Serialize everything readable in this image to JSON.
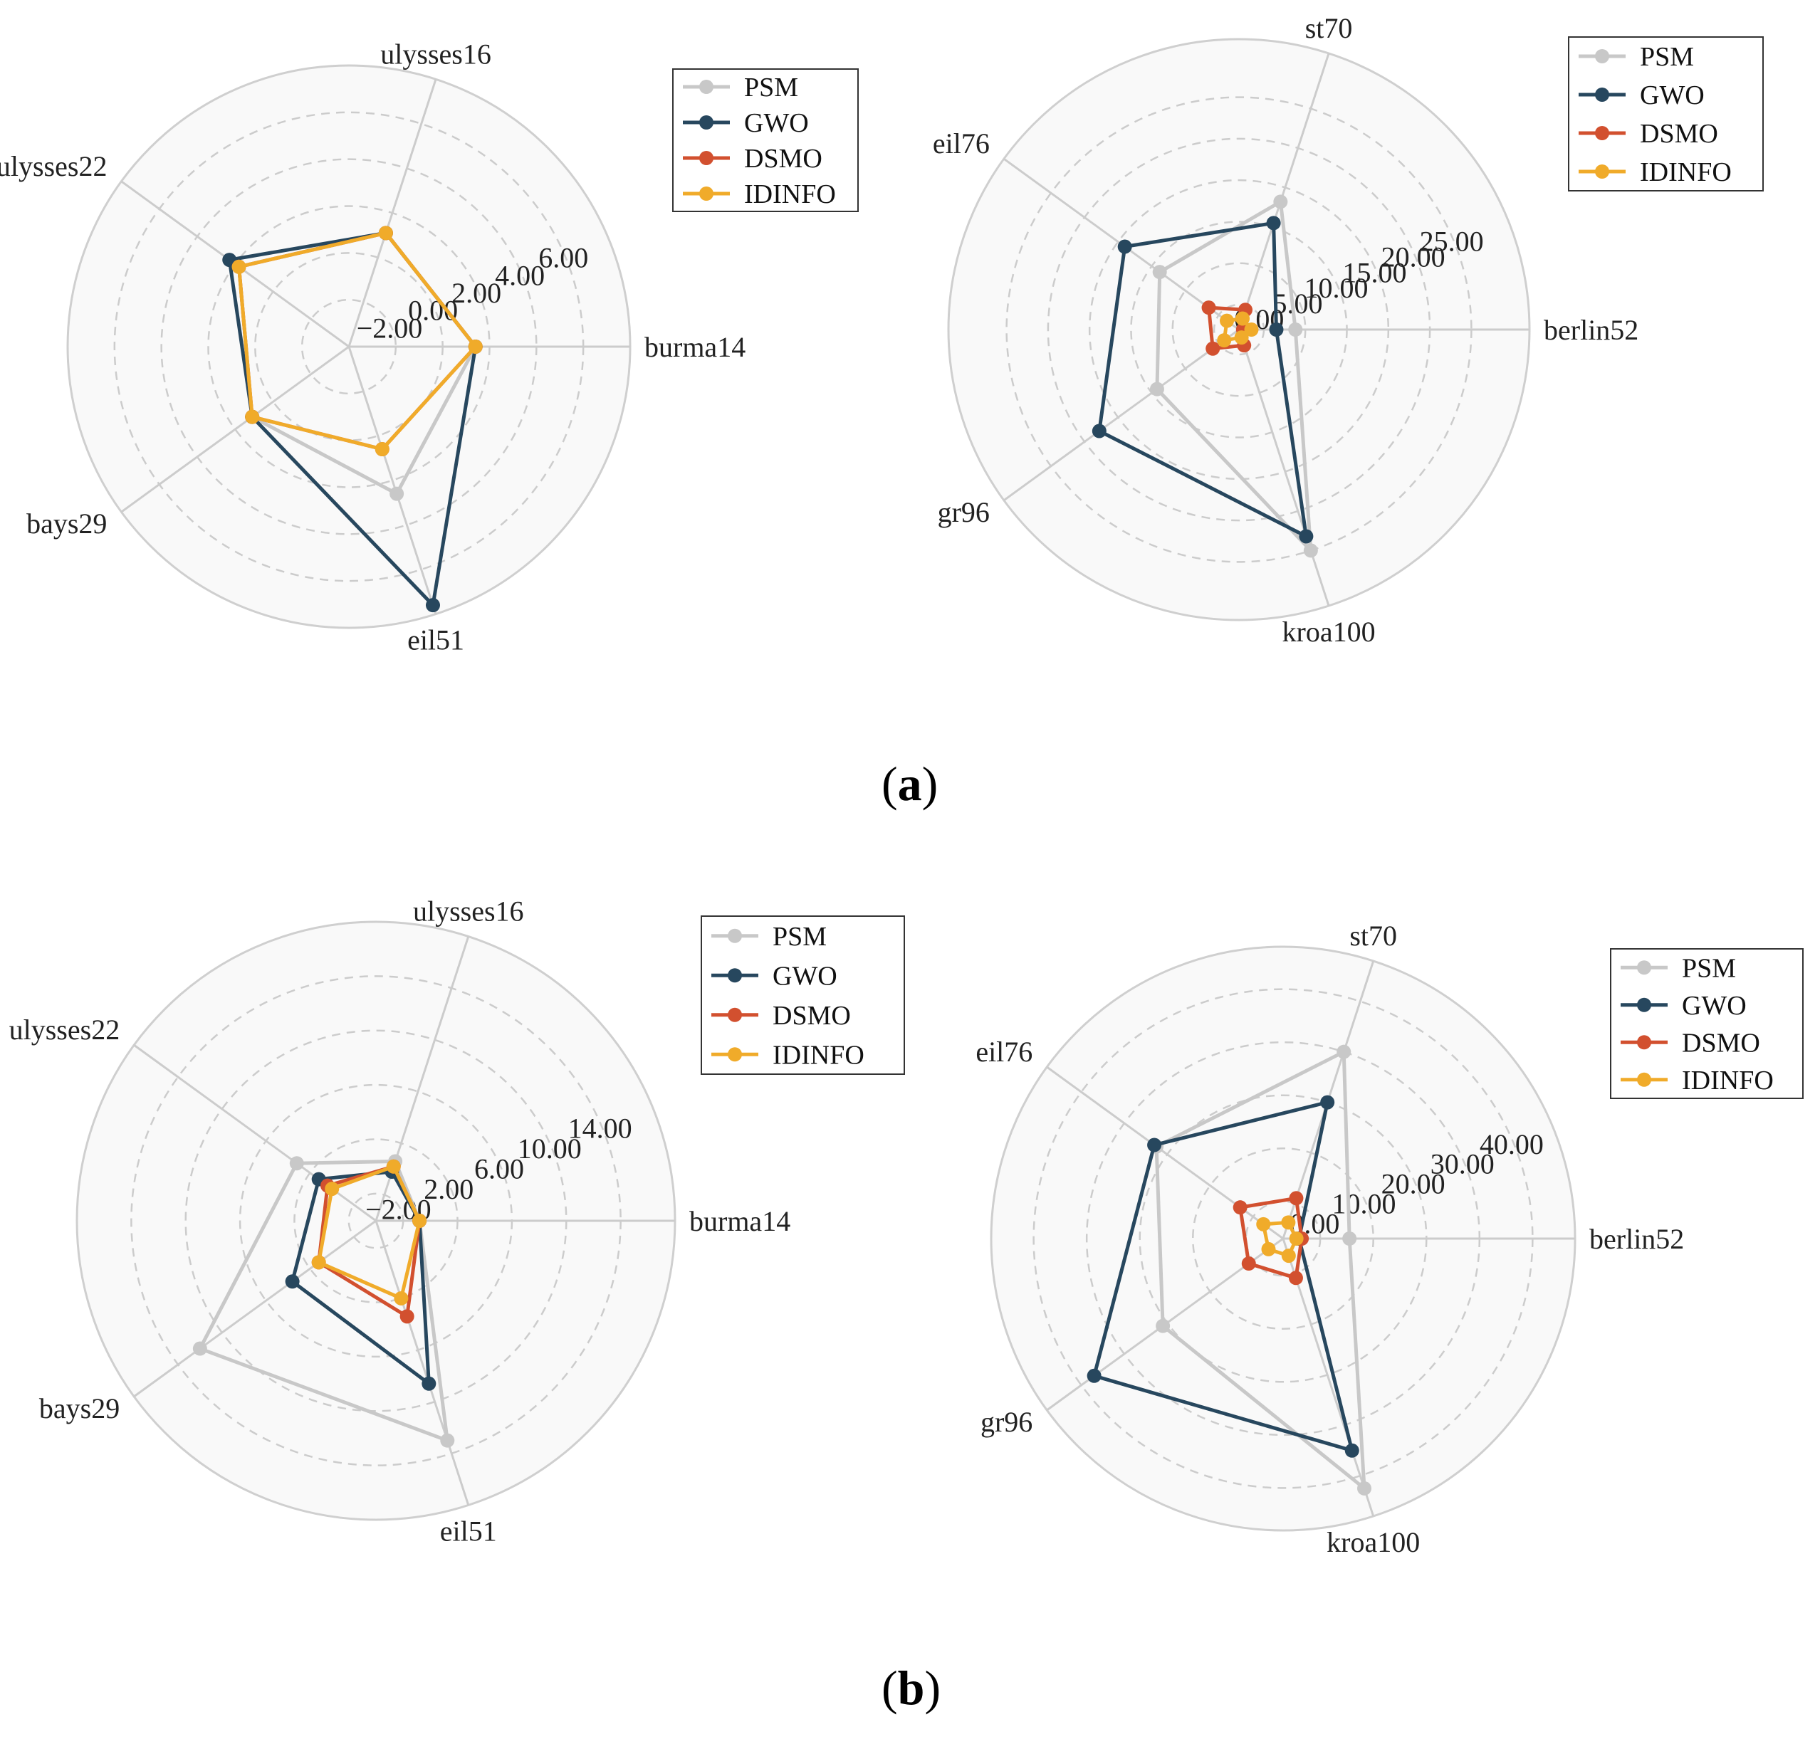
{
  "figure": {
    "panel_labels": [
      {
        "open": "(",
        "letter": "a",
        "close": ")"
      },
      {
        "open": "(",
        "letter": "b",
        "close": ")"
      }
    ]
  },
  "series_styles": [
    {
      "name": "PSM",
      "color": "#c8c8c8"
    },
    {
      "name": "GWO",
      "color": "#27475e"
    },
    {
      "name": "DSMO",
      "color": "#d2502f"
    },
    {
      "name": "IDINFO",
      "color": "#f0ab2a"
    }
  ],
  "chart_data": [
    {
      "type": "radar",
      "panel": "a-left",
      "axes": [
        "burma14",
        "ulysses16",
        "ulysses22",
        "bays29",
        "eil51"
      ],
      "rlim": [
        -4,
        8
      ],
      "ticks": [
        -2,
        0,
        2,
        4,
        6
      ],
      "tick_labels": [
        "−2.00",
        "0.00",
        "2.00",
        "4.00",
        "6.00"
      ],
      "grid": true,
      "legend": "top-right",
      "series": [
        {
          "name": "PSM",
          "values": [
            1.4,
            1.1,
            1.8,
            1.1,
            2.6
          ]
        },
        {
          "name": "GWO",
          "values": [
            1.4,
            1.1,
            2.3,
            1.1,
            7.6
          ]
        },
        {
          "name": "DSMO",
          "values": [
            1.4,
            1.1,
            1.8,
            1.1,
            0.6
          ]
        },
        {
          "name": "IDINFO",
          "values": [
            1.4,
            1.1,
            1.8,
            1.1,
            0.6
          ]
        }
      ]
    },
    {
      "type": "radar",
      "panel": "a-right",
      "axes": [
        "berlin52",
        "st70",
        "eil76",
        "gr96",
        "kroa100"
      ],
      "rlim": [
        -3,
        32
      ],
      "ticks": [
        0,
        5,
        10,
        15,
        20,
        25
      ],
      "tick_labels": [
        "0.00",
        "5.00",
        "10.00",
        "15.00",
        "20.00",
        "25.00"
      ],
      "grid": true,
      "legend": "top-right",
      "series": [
        {
          "name": "PSM",
          "values": [
            3.8,
            13.2,
            8.8,
            9.2,
            25.0
          ]
        },
        {
          "name": "GWO",
          "values": [
            1.5,
            10.5,
            14.0,
            17.8,
            23.2
          ]
        },
        {
          "name": "DSMO",
          "values": [
            -2.5,
            -0.5,
            1.5,
            0.9,
            -1.0
          ]
        },
        {
          "name": "IDINFO",
          "values": [
            -1.5,
            -1.6,
            -1.2,
            -0.8,
            -2.0
          ]
        }
      ]
    },
    {
      "type": "radar",
      "panel": "b-left",
      "axes": [
        "burma14",
        "ulysses16",
        "ulysses22",
        "bays29",
        "eil51"
      ],
      "rlim": [
        -4,
        18
      ],
      "ticks": [
        -2,
        2,
        6,
        10,
        14
      ],
      "tick_labels": [
        "−2.00",
        "2.00",
        "6.00",
        "10.00",
        "14.00"
      ],
      "grid": true,
      "legend": "top-right",
      "series": [
        {
          "name": "PSM",
          "values": [
            -0.8,
            0.6,
            3.2,
            12.0,
            13.0
          ]
        },
        {
          "name": "GWO",
          "values": [
            -0.8,
            -0.2,
            1.2,
            3.6,
            8.6
          ]
        },
        {
          "name": "DSMO",
          "values": [
            -0.8,
            0.2,
            0.4,
            1.2,
            3.4
          ]
        },
        {
          "name": "IDINFO",
          "values": [
            -0.8,
            0.2,
            0.0,
            1.2,
            2.0
          ]
        }
      ]
    },
    {
      "type": "radar",
      "panel": "b-right",
      "axes": [
        "berlin52",
        "st70",
        "eil76",
        "gr96",
        "kroa100"
      ],
      "rlim": [
        -7,
        48
      ],
      "ticks": [
        0,
        10,
        20,
        30,
        40
      ],
      "tick_labels": [
        "0.00",
        "10.00",
        "20.00",
        "30.00",
        "40.00"
      ],
      "grid": true,
      "legend": "top-right",
      "series": [
        {
          "name": "PSM",
          "values": [
            5.5,
            30.0,
            22.5,
            21.0,
            42.5
          ]
        },
        {
          "name": "GWO",
          "values": [
            -4.0,
            20.0,
            23.0,
            37.0,
            35.0
          ]
        },
        {
          "name": "DSMO",
          "values": [
            -3.5,
            1.0,
            3.0,
            1.0,
            0.8
          ]
        },
        {
          "name": "IDINFO",
          "values": [
            -4.5,
            -3.8,
            -2.4,
            -3.6,
            -3.6
          ]
        }
      ]
    }
  ]
}
